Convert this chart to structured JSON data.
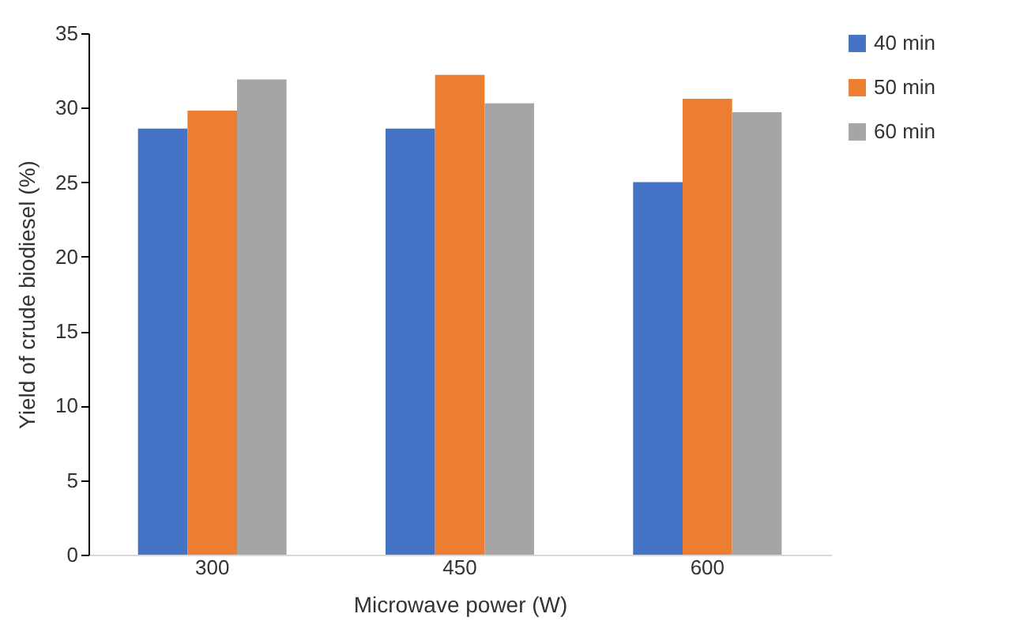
{
  "chart_data": {
    "type": "bar",
    "xlabel": "Microwave power (W)",
    "ylabel": "Yield of crude biodiesel (%)",
    "categories": [
      "300",
      "450",
      "600"
    ],
    "series": [
      {
        "name": "40 min",
        "color": "#4472c4",
        "values": [
          28.6,
          28.6,
          25.0
        ]
      },
      {
        "name": "50 min",
        "color": "#ed7d31",
        "values": [
          29.8,
          32.2,
          30.6
        ]
      },
      {
        "name": "60 min",
        "color": "#a5a5a5",
        "values": [
          31.9,
          30.3,
          29.7
        ]
      }
    ],
    "ylim": [
      0,
      35
    ],
    "yticks": [
      0,
      5,
      10,
      15,
      20,
      25,
      30,
      35
    ],
    "grid": false,
    "legend": "right"
  }
}
